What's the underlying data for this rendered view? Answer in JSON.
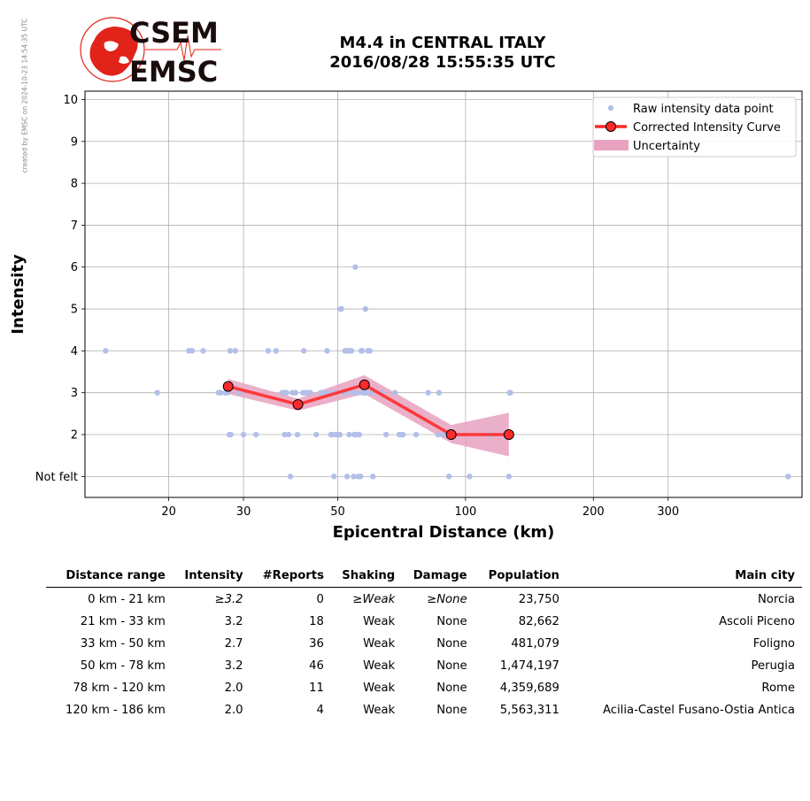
{
  "header": {
    "watermark": "created by EMSC on 2024-10-23 14:54:35 UTC",
    "logo_top": "CSEM",
    "logo_bottom": "EMSC",
    "title_line1": "M4.4 in CENTRAL ITALY",
    "title_line2": "2016/08/28 15:55:35 UTC"
  },
  "colors": {
    "raw": "#b2bfe9",
    "curve": "#ff2b2b",
    "uncert": "#e8a2bf",
    "logo_red": "#e2231a"
  },
  "chart_data": {
    "type": "scatter",
    "xlabel": "Epicentral Distance (km)",
    "ylabel": "Intensity",
    "xscale": "log",
    "xlim": [
      12.7,
      620
    ],
    "ylim": [
      0.5,
      10.2
    ],
    "xticks": [
      20,
      30,
      50,
      100,
      200,
      300
    ],
    "yticks": [
      {
        "v": 1,
        "label": "Not felt"
      },
      {
        "v": 2,
        "label": "2"
      },
      {
        "v": 3,
        "label": "3"
      },
      {
        "v": 4,
        "label": "4"
      },
      {
        "v": 5,
        "label": "5"
      },
      {
        "v": 6,
        "label": "6"
      },
      {
        "v": 7,
        "label": "7"
      },
      {
        "v": 8,
        "label": "8"
      },
      {
        "v": 9,
        "label": "9"
      },
      {
        "v": 10,
        "label": "10"
      }
    ],
    "grid": true,
    "legend": {
      "position": "top-right",
      "entries": [
        "Raw intensity data point",
        "Corrected Intensity Curve",
        "Uncertainty"
      ]
    },
    "raw_points": [
      [
        14.2,
        4
      ],
      [
        18.8,
        3
      ],
      [
        22.3,
        4
      ],
      [
        22.7,
        4
      ],
      [
        24.1,
        4
      ],
      [
        26.2,
        3
      ],
      [
        26.5,
        3
      ],
      [
        27.2,
        3
      ],
      [
        27.5,
        3
      ],
      [
        27.8,
        2
      ],
      [
        28.0,
        2
      ],
      [
        27.9,
        4
      ],
      [
        28.7,
        4
      ],
      [
        29.3,
        3
      ],
      [
        30.0,
        2
      ],
      [
        32.1,
        2
      ],
      [
        34.3,
        4
      ],
      [
        35.8,
        4
      ],
      [
        37.0,
        3
      ],
      [
        37.4,
        3
      ],
      [
        37.9,
        3
      ],
      [
        37.5,
        2
      ],
      [
        38.3,
        2
      ],
      [
        38.7,
        1
      ],
      [
        39.1,
        3
      ],
      [
        39.5,
        3
      ],
      [
        39.8,
        3
      ],
      [
        40.2,
        2
      ],
      [
        41.4,
        3
      ],
      [
        41.6,
        4
      ],
      [
        41.9,
        3
      ],
      [
        42.3,
        3
      ],
      [
        43.1,
        3
      ],
      [
        44.5,
        2
      ],
      [
        45.6,
        3
      ],
      [
        46.4,
        3
      ],
      [
        47.2,
        4
      ],
      [
        47.8,
        3
      ],
      [
        48.2,
        2
      ],
      [
        48.6,
        2
      ],
      [
        49.0,
        1
      ],
      [
        49.2,
        3
      ],
      [
        49.5,
        2
      ],
      [
        50.3,
        2
      ],
      [
        50.6,
        2
      ],
      [
        50.8,
        5
      ],
      [
        51.0,
        5
      ],
      [
        51.6,
        3
      ],
      [
        52.0,
        4
      ],
      [
        52.3,
        3
      ],
      [
        52.6,
        1
      ],
      [
        52.9,
        4
      ],
      [
        53.2,
        2
      ],
      [
        53.5,
        4
      ],
      [
        53.9,
        4
      ],
      [
        54.2,
        3
      ],
      [
        54.5,
        1
      ],
      [
        54.7,
        2
      ],
      [
        55.0,
        6
      ],
      [
        55.3,
        2
      ],
      [
        55.6,
        3
      ],
      [
        55.9,
        1
      ],
      [
        56.2,
        2
      ],
      [
        56.6,
        1
      ],
      [
        56.8,
        4
      ],
      [
        57.1,
        4
      ],
      [
        57.4,
        3
      ],
      [
        57.7,
        3
      ],
      [
        58.1,
        5
      ],
      [
        58.4,
        3
      ],
      [
        58.9,
        4
      ],
      [
        59.5,
        4
      ],
      [
        60.0,
        3
      ],
      [
        60.5,
        1
      ],
      [
        63.6,
        3
      ],
      [
        65.0,
        2
      ],
      [
        68.2,
        3
      ],
      [
        69.8,
        2
      ],
      [
        70.5,
        2
      ],
      [
        71.2,
        2
      ],
      [
        76.5,
        2
      ],
      [
        81.7,
        3
      ],
      [
        86.1,
        2
      ],
      [
        86.6,
        3
      ],
      [
        89.0,
        2
      ],
      [
        91.4,
        1
      ],
      [
        102.2,
        1
      ],
      [
        113.8,
        2
      ],
      [
        126.5,
        1
      ],
      [
        126.9,
        3
      ],
      [
        127.6,
        3
      ],
      [
        575,
        1
      ]
    ],
    "curve": {
      "x": [
        27.6,
        40.3,
        57.8,
        92.5,
        126.5
      ],
      "y": [
        3.15,
        2.72,
        3.19,
        2.0,
        2.0
      ]
    },
    "uncertainty": {
      "x": [
        27.6,
        40.3,
        57.8,
        92.5,
        126.5
      ],
      "upper": [
        3.33,
        2.86,
        3.42,
        2.23,
        2.52
      ],
      "lower": [
        2.97,
        2.57,
        2.97,
        1.8,
        1.48
      ]
    }
  },
  "table": {
    "headers": [
      "Distance range",
      "Intensity",
      "#Reports",
      "Shaking",
      "Damage",
      "Population",
      "Main city"
    ],
    "rows": [
      [
        "0 km -   21 km",
        "≥3.2",
        "0",
        "≥Weak",
        "≥None",
        "23,750",
        "Norcia"
      ],
      [
        "21 km -   33 km",
        "3.2",
        "18",
        "Weak",
        "None",
        "82,662",
        "Ascoli Piceno"
      ],
      [
        "33 km -   50 km",
        "2.7",
        "36",
        "Weak",
        "None",
        "481,079",
        "Foligno"
      ],
      [
        "50 km -   78 km",
        "3.2",
        "46",
        "Weak",
        "None",
        "1,474,197",
        "Perugia"
      ],
      [
        "78 km -  120 km",
        "2.0",
        "11",
        "Weak",
        "None",
        "4,359,689",
        "Rome"
      ],
      [
        "120 km -  186 km",
        "2.0",
        "4",
        "Weak",
        "None",
        "5,563,311",
        "Acilia-Castel Fusano-Ostia Antica"
      ]
    ],
    "italic_first_row": true
  }
}
